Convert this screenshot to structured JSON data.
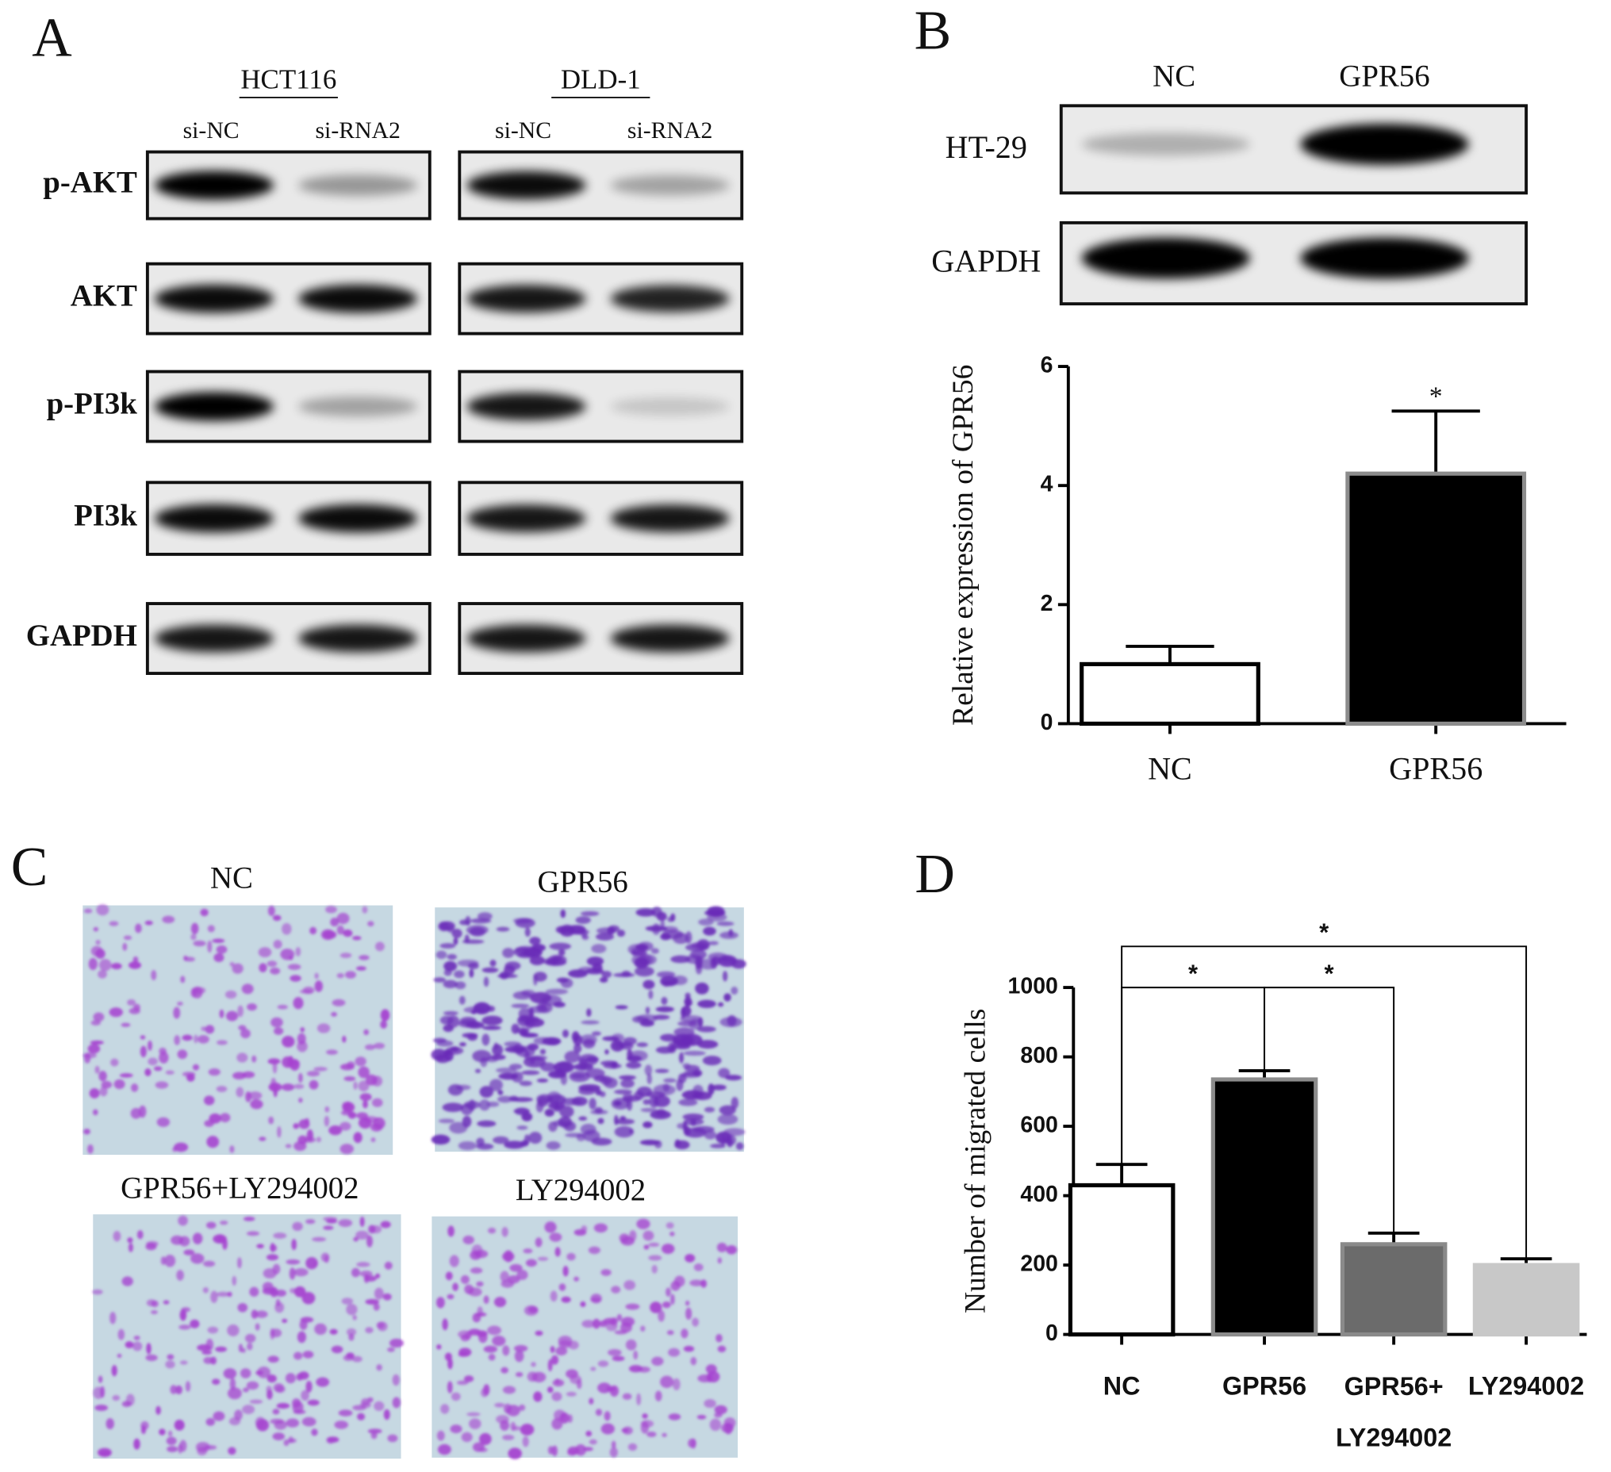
{
  "panel_labels": [
    "A",
    "B",
    "C",
    "D"
  ],
  "panel_a": {
    "cell_lines": [
      {
        "name": "HCT116",
        "lanes": [
          "si-NC",
          "si-RNA2"
        ]
      },
      {
        "name": "DLD-1",
        "lanes": [
          "si-NC",
          "si-RNA2"
        ]
      }
    ],
    "proteins": [
      "p-AKT",
      "AKT",
      "p-PI3k",
      "PI3k",
      "GAPDH"
    ]
  },
  "panel_b": {
    "lanes": [
      "NC",
      "GPR56"
    ],
    "rows": [
      "HT-29",
      "GAPDH"
    ]
  },
  "panel_c": {
    "conditions": [
      "NC",
      "GPR56",
      "GPR56+LY294002",
      "LY294002"
    ]
  },
  "chart_data": [
    {
      "type": "bar",
      "ylabel": "Relative expression of GPR56",
      "categories": [
        "NC",
        "GPR56"
      ],
      "values": [
        1.0,
        4.2
      ],
      "errors": [
        0.3,
        1.05
      ],
      "colors": [
        "#ffffff",
        "#000000"
      ],
      "edge_colors": [
        "#000000",
        "#8c8c8c"
      ],
      "ylim": [
        0,
        6
      ],
      "yticks": [
        0,
        2,
        4,
        6
      ],
      "significance": [
        {
          "bars": [
            1
          ],
          "label": "*"
        }
      ]
    },
    {
      "type": "bar",
      "ylabel": "Number of migrated cells",
      "categories": [
        "NC",
        "GPR56",
        "GPR56+\nLY294002",
        "LY294002"
      ],
      "values": [
        430,
        735,
        260,
        200
      ],
      "errors": [
        60,
        25,
        32,
        18
      ],
      "colors": [
        "#ffffff",
        "#000000",
        "#6b6b6b",
        "#c8c8c8"
      ],
      "edge_colors": [
        "#000000",
        "#8c8c8c",
        "#8a8a8a",
        "#c8c8c8"
      ],
      "ylim": [
        0,
        1000
      ],
      "yticks": [
        0,
        200,
        400,
        600,
        800,
        1000
      ],
      "significance": [
        {
          "bars": [
            0,
            1
          ],
          "label": "*"
        },
        {
          "bars": [
            1,
            2
          ],
          "label": "*"
        },
        {
          "bars": [
            0,
            3
          ],
          "label": "*"
        }
      ]
    }
  ]
}
